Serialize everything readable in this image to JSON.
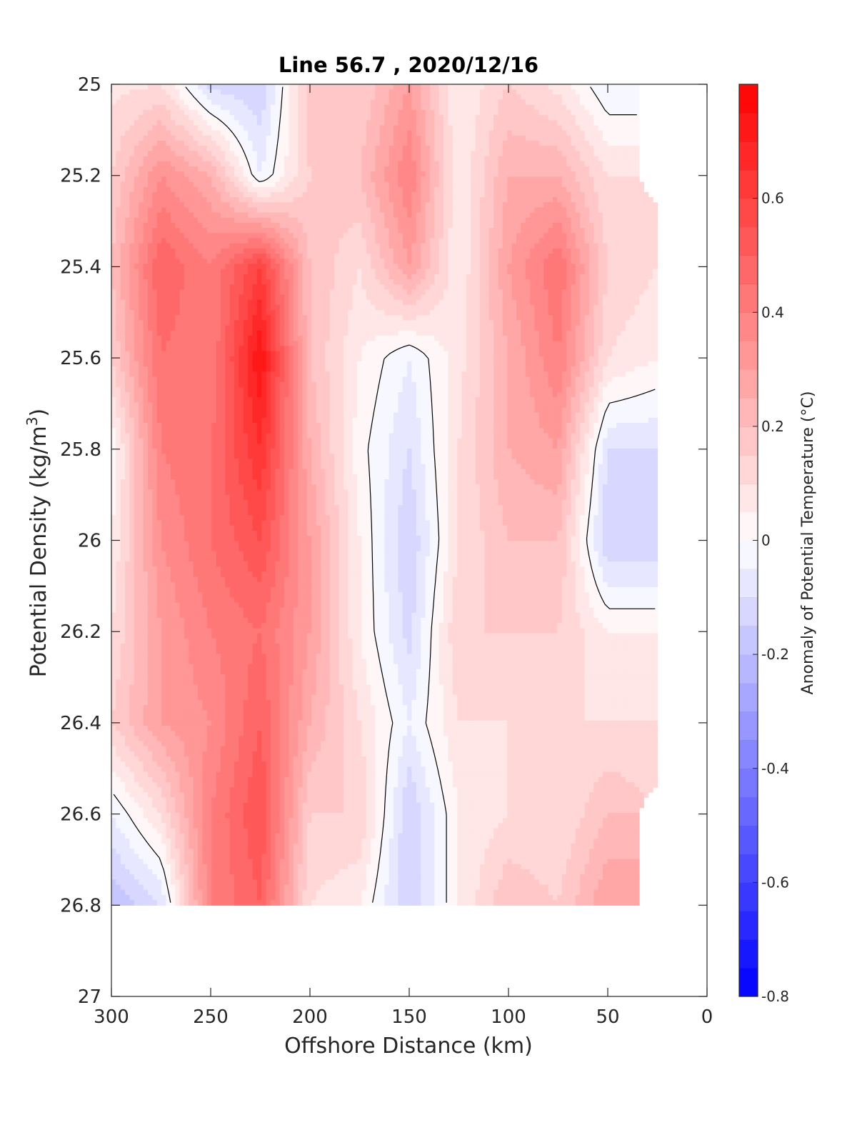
{
  "chart_data": {
    "type": "heatmap",
    "title": "Line 56.7 , 2020/12/16",
    "xlabel": "Offshore Distance (km)",
    "ylabel_main": "Potential Density (kg/m",
    "ylabel_sup": "3",
    "ylabel_close": ")",
    "xlim": [
      300,
      0
    ],
    "ylim": [
      25,
      27
    ],
    "x_reversed": true,
    "y_reversed": true,
    "xticks": [
      {
        "value": 300,
        "label": "300"
      },
      {
        "value": 250,
        "label": "250"
      },
      {
        "value": 200,
        "label": "200"
      },
      {
        "value": 150,
        "label": "150"
      },
      {
        "value": 100,
        "label": "100"
      },
      {
        "value": 50,
        "label": "50"
      },
      {
        "value": 0,
        "label": "0"
      }
    ],
    "yticks": [
      {
        "value": 25,
        "label": "25"
      },
      {
        "value": 25.2,
        "label": "25.2"
      },
      {
        "value": 25.4,
        "label": "25.4"
      },
      {
        "value": 25.6,
        "label": "25.6"
      },
      {
        "value": 25.8,
        "label": "25.8"
      },
      {
        "value": 26,
        "label": "26"
      },
      {
        "value": 26.2,
        "label": "26.2"
      },
      {
        "value": 26.4,
        "label": "26.4"
      },
      {
        "value": 26.6,
        "label": "26.6"
      },
      {
        "value": 26.8,
        "label": "26.8"
      },
      {
        "value": 27,
        "label": "27"
      }
    ],
    "colorbar": {
      "label": "Anomaly of Potential Temperature (°C)",
      "range": [
        -0.8,
        0.8
      ],
      "levels": 32,
      "ticks": [
        {
          "value": 0.6,
          "label": "0.6"
        },
        {
          "value": 0.4,
          "label": "0.4"
        },
        {
          "value": 0.2,
          "label": "0.2"
        },
        {
          "value": 0,
          "label": "0"
        },
        {
          "value": -0.2,
          "label": "-0.2"
        },
        {
          "value": -0.4,
          "label": "-0.4"
        },
        {
          "value": -0.6,
          "label": "-0.6"
        },
        {
          "value": -0.8,
          "label": "-0.8"
        }
      ],
      "color_min": "#0000ff",
      "color_mid": "#ffffff",
      "color_max": "#ff0000"
    },
    "field": {
      "x_km": [
        300,
        275,
        250,
        225,
        200,
        175,
        150,
        125,
        100,
        75,
        50,
        25
      ],
      "density": [
        25.0,
        25.2,
        25.4,
        25.6,
        25.8,
        26.0,
        26.2,
        26.4,
        26.6,
        26.8
      ],
      "anomaly": [
        [
          0.08,
          0.1,
          -0.12,
          -0.15,
          0.18,
          0.15,
          0.3,
          0.05,
          0.15,
          0.08,
          -0.05,
          null
        ],
        [
          0.15,
          0.35,
          0.25,
          -0.05,
          0.15,
          0.2,
          0.4,
          0.05,
          0.25,
          0.25,
          0.1,
          null
        ],
        [
          0.2,
          0.5,
          0.4,
          0.6,
          0.2,
          0.1,
          0.3,
          0.05,
          0.3,
          0.45,
          0.15,
          0.1
        ],
        [
          0.15,
          0.45,
          0.4,
          0.75,
          0.2,
          0.05,
          -0.05,
          0.08,
          0.25,
          0.4,
          0.1,
          0.05
        ],
        [
          0.0,
          0.4,
          0.45,
          0.65,
          0.25,
          0.02,
          -0.1,
          0.1,
          0.25,
          0.3,
          -0.1,
          -0.1
        ],
        [
          0.05,
          0.35,
          0.45,
          0.55,
          0.3,
          0.05,
          -0.15,
          0.1,
          0.2,
          0.2,
          -0.15,
          -0.15
        ],
        [
          0.1,
          0.3,
          0.4,
          0.45,
          0.3,
          0.05,
          -0.12,
          0.15,
          0.15,
          0.15,
          0.05,
          0.05
        ],
        [
          0.15,
          0.3,
          0.35,
          0.5,
          0.25,
          0.1,
          -0.05,
          0.1,
          0.1,
          0.1,
          0.1,
          0.1
        ],
        [
          -0.05,
          0.1,
          0.4,
          0.55,
          0.15,
          0.15,
          -0.15,
          0.05,
          0.1,
          0.1,
          0.2,
          null
        ],
        [
          -0.2,
          -0.1,
          0.4,
          0.5,
          0.1,
          0.05,
          -0.15,
          0.05,
          0.2,
          0.15,
          0.3,
          null
        ]
      ]
    }
  }
}
